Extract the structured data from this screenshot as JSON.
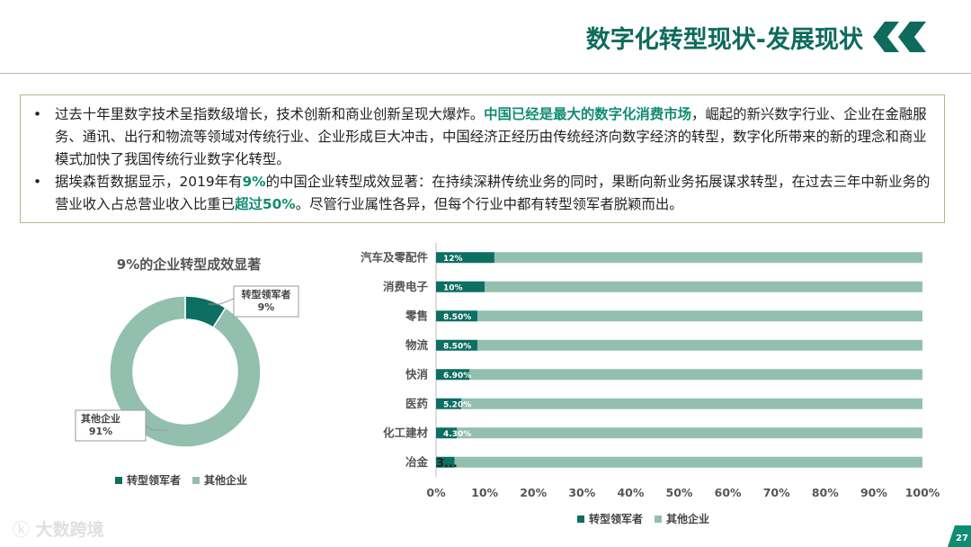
{
  "header": {
    "title": "数字化转型现状-发展现状"
  },
  "bullets": [
    {
      "parts": [
        {
          "text": "过去十年里数字技术呈指数级增长，技术创新和商业创新呈现大爆炸。",
          "hl": false
        },
        {
          "text": "中国已经是最大的数字化消费市场",
          "hl": true
        },
        {
          "text": "，崛起的新兴数字行业、企业在金融服务、通讯、出行和物流等领域对传统行业、企业形成巨大冲击，中国经济正经历由传统经济向数字经济的转型，数字化所带来的新的理念和商业模式加快了我国传统行业数字化转型。",
          "hl": false
        }
      ]
    },
    {
      "parts": [
        {
          "text": "据埃森哲数据显示，2019年有",
          "hl": false
        },
        {
          "text": "9%",
          "hl": true
        },
        {
          "text": "的中国企业转型成效显著：在持续深耕传统业务的同时，果断向新业务拓展谋求转型，在过去三年中新业务的营业收入占总营业收入比重已",
          "hl": false
        },
        {
          "text": "超过50%",
          "hl": true
        },
        {
          "text": "。尽管行业属性各异，但每个行业中都有转型领军者脱颖而出。",
          "hl": false
        }
      ]
    }
  ],
  "colors": {
    "leader": "#0d6e62",
    "other": "#93bfae",
    "accent": "#108c72"
  },
  "chart_data": [
    {
      "type": "pie",
      "title": "9%的企业转型成效显著",
      "labels": [
        "转型领军者",
        "其他企业"
      ],
      "values": [
        9,
        91
      ],
      "data_labels": [
        "9%",
        "91%"
      ],
      "legend": [
        "转型领军者",
        "其他企业"
      ],
      "legend_position": "bottom"
    },
    {
      "type": "bar",
      "orientation": "horizontal",
      "stacked": "percent",
      "categories": [
        "汽车及零配件",
        "消费电子",
        "零售",
        "物流",
        "快消",
        "医药",
        "化工建材",
        "冶金"
      ],
      "series": [
        {
          "name": "转型领军者",
          "values": [
            12,
            10,
            8.5,
            8.5,
            6.9,
            5.2,
            4.3,
            3.8
          ]
        },
        {
          "name": "其他企业",
          "values": [
            88,
            90,
            91.5,
            91.5,
            93.1,
            94.8,
            95.7,
            96.2
          ]
        }
      ],
      "data_labels": [
        "12%",
        "10%",
        "8.50%",
        "8.50%",
        "6.90%",
        "5.20%",
        "4.30%",
        "3..."
      ],
      "x_ticks": [
        "0%",
        "10%",
        "20%",
        "30%",
        "40%",
        "50%",
        "60%",
        "70%",
        "80%",
        "90%",
        "100%"
      ],
      "xlim": [
        0,
        100
      ],
      "legend": [
        "转型领军者",
        "其他企业"
      ],
      "legend_position": "bottom"
    }
  ],
  "footer": {
    "logo_text": "大数跨境",
    "page_number": "27"
  }
}
